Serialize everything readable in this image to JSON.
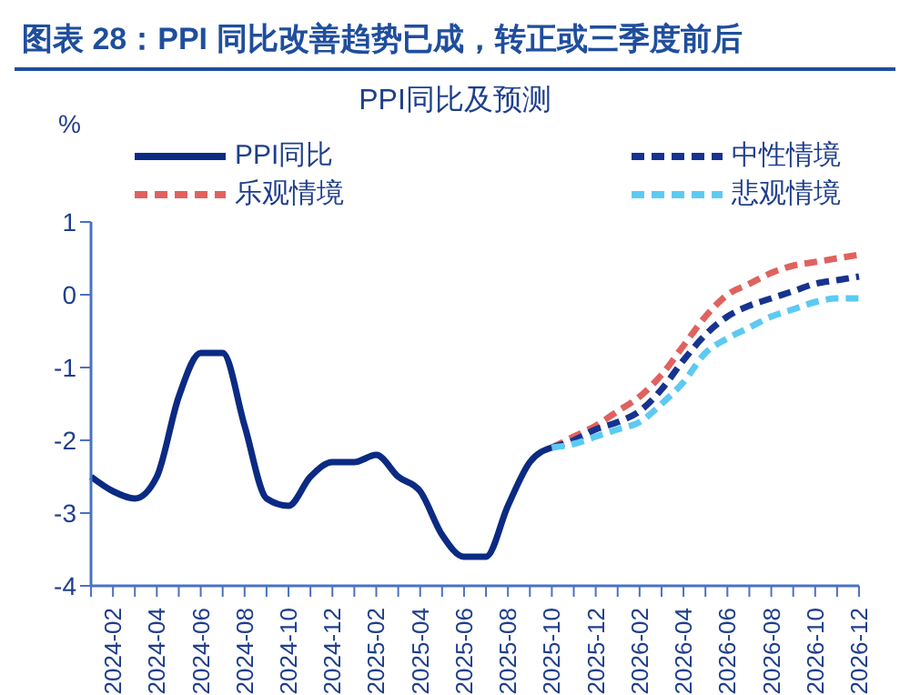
{
  "chart_data": {
    "type": "line",
    "title": "图表 28：PPI 同比改善趋势已成，转正或三季度前后",
    "subtitle": "PPI同比及预测",
    "ylabel": "%",
    "categories": [
      null,
      "2024-02",
      null,
      "2024-04",
      null,
      "2024-06",
      null,
      "2024-08",
      null,
      "2024-10",
      null,
      "2024-12",
      null,
      "2025-02",
      null,
      "2025-04",
      null,
      "2025-06",
      null,
      "2025-08",
      null,
      "2025-10",
      null,
      "2025-12",
      null,
      "2026-02",
      null,
      "2026-04",
      null,
      "2026-06",
      null,
      "2026-08",
      null,
      "2026-10",
      null,
      "2026-12"
    ],
    "series": [
      {
        "name": "PPI同比",
        "color": "#0b2a83",
        "line_style": "solid",
        "values": [
          -2.5,
          -2.7,
          -2.8,
          -2.5,
          -1.4,
          -0.8,
          -0.8,
          -1.8,
          -2.8,
          -2.9,
          -2.5,
          -2.3,
          -2.3,
          -2.2,
          -2.5,
          -2.7,
          -3.3,
          -3.6,
          -3.6,
          -2.9,
          -2.3,
          -2.1,
          null,
          null,
          null,
          null,
          null,
          null,
          null,
          null,
          null,
          null,
          null,
          null,
          null,
          null
        ]
      },
      {
        "name": "乐观情境",
        "color": "#e0625f",
        "line_style": "dashed",
        "values": [
          null,
          null,
          null,
          null,
          null,
          null,
          null,
          null,
          null,
          null,
          null,
          null,
          null,
          null,
          null,
          null,
          null,
          null,
          null,
          null,
          null,
          -2.1,
          -1.95,
          -1.8,
          -1.6,
          -1.4,
          -1.1,
          -0.7,
          -0.3,
          0,
          0.15,
          0.3,
          0.4,
          0.45,
          0.5,
          0.55
        ]
      },
      {
        "name": "中性情境",
        "color": "#17338f",
        "line_style": "dashed",
        "values": [
          null,
          null,
          null,
          null,
          null,
          null,
          null,
          null,
          null,
          null,
          null,
          null,
          null,
          null,
          null,
          null,
          null,
          null,
          null,
          null,
          null,
          -2.1,
          -2.0,
          -1.85,
          -1.75,
          -1.6,
          -1.3,
          -0.9,
          -0.55,
          -0.3,
          -0.15,
          -0.05,
          0.05,
          0.15,
          0.2,
          0.25
        ]
      },
      {
        "name": "悲观情境",
        "color": "#5ccaf2",
        "line_style": "dashed",
        "values": [
          null,
          null,
          null,
          null,
          null,
          null,
          null,
          null,
          null,
          null,
          null,
          null,
          null,
          null,
          null,
          null,
          null,
          null,
          null,
          null,
          null,
          -2.1,
          -2.05,
          -1.95,
          -1.85,
          -1.75,
          -1.5,
          -1.2,
          -0.8,
          -0.6,
          -0.45,
          -0.3,
          -0.2,
          -0.1,
          -0.05,
          -0.05
        ]
      }
    ],
    "ylim": [
      -4,
      1
    ],
    "yticks": [
      -4,
      -3,
      -2,
      -1,
      0,
      1
    ],
    "grid": false,
    "legend": "top",
    "marker": "none"
  }
}
